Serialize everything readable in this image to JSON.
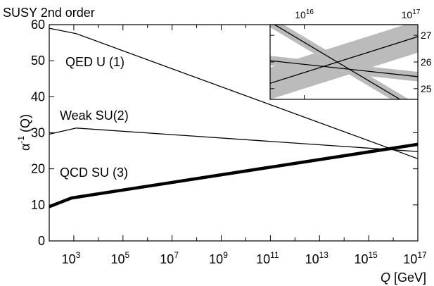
{
  "chart_data": [
    {
      "type": "line",
      "title": "SUSY 2nd order",
      "xlabel_symbol": "Q",
      "xlabel_unit": "[GeV]",
      "ylabel_symbol": "α",
      "ylabel_exp": "-1",
      "ylabel_arg": "(Q)",
      "x_scale": "log",
      "xlim": [
        100,
        1e+17
      ],
      "ylim": [
        0,
        60
      ],
      "x_ticks": [
        {
          "x": 1000,
          "base": "10",
          "exp": "3"
        },
        {
          "x": 100000,
          "base": "10",
          "exp": "5"
        },
        {
          "x": 10000000,
          "base": "10",
          "exp": "7"
        },
        {
          "x": 1000000000,
          "base": "10",
          "exp": "9"
        },
        {
          "x": 100000000000,
          "base": "10",
          "exp": "11"
        },
        {
          "x": 10000000000000,
          "base": "10",
          "exp": "13"
        },
        {
          "x": 1000000000000000,
          "base": "10",
          "exp": "15"
        },
        {
          "x": 100000000000000000,
          "base": "10",
          "exp": "17"
        }
      ],
      "y_ticks": [
        "0",
        "10",
        "20",
        "30",
        "40",
        "50",
        "60"
      ],
      "grid": false,
      "legend": "none",
      "series": [
        {
          "name": "QED U (1)",
          "line": "thin",
          "points": [
            [
              100,
              59
            ],
            [
              1260,
              57.5
            ],
            [
              1e+17,
              22.8
            ]
          ]
        },
        {
          "name": "Weak SU(2)",
          "line": "thin",
          "points": [
            [
              100,
              29.6
            ],
            [
              1260,
              31.3
            ],
            [
              1e+17,
              24.8
            ]
          ]
        },
        {
          "name": "QCD SU (3)",
          "line": "thick",
          "points": [
            [
              100,
              9.5
            ],
            [
              200,
              10.3
            ],
            [
              800,
              11.9
            ],
            [
              1e+17,
              26.8
            ]
          ]
        }
      ]
    },
    {
      "type": "line",
      "title": "",
      "x_scale": "log",
      "xlim": [
        5000000000000000.0,
        1e+17
      ],
      "ylim": [
        24.6,
        27.4
      ],
      "x_ticks": [
        {
          "x": 10000000000000000,
          "base": "10",
          "exp": "16"
        },
        {
          "x": 100000000000000000,
          "base": "10",
          "exp": "17"
        }
      ],
      "y_ticks": [
        "25",
        "26",
        "27"
      ],
      "x_tick_position": "top",
      "y_tick_position": "right",
      "band_color": "#bbbbbb",
      "series": [
        {
          "name": "QED U (1)",
          "points": [
            [
              5000000000000000.0,
              27.5
            ],
            [
              1e+17,
              24.2
            ]
          ],
          "band_halfwidth": 0.2
        },
        {
          "name": "Weak SU(2)",
          "points": [
            [
              5000000000000000.0,
              26.05
            ],
            [
              1e+17,
              25.45
            ]
          ],
          "band_halfwidth": 0.18
        },
        {
          "name": "QCD SU (3)",
          "points": [
            [
              5000000000000000.0,
              25.2
            ],
            [
              1e+17,
              26.95
            ]
          ],
          "band_halfwidth": 0.6
        }
      ]
    }
  ]
}
